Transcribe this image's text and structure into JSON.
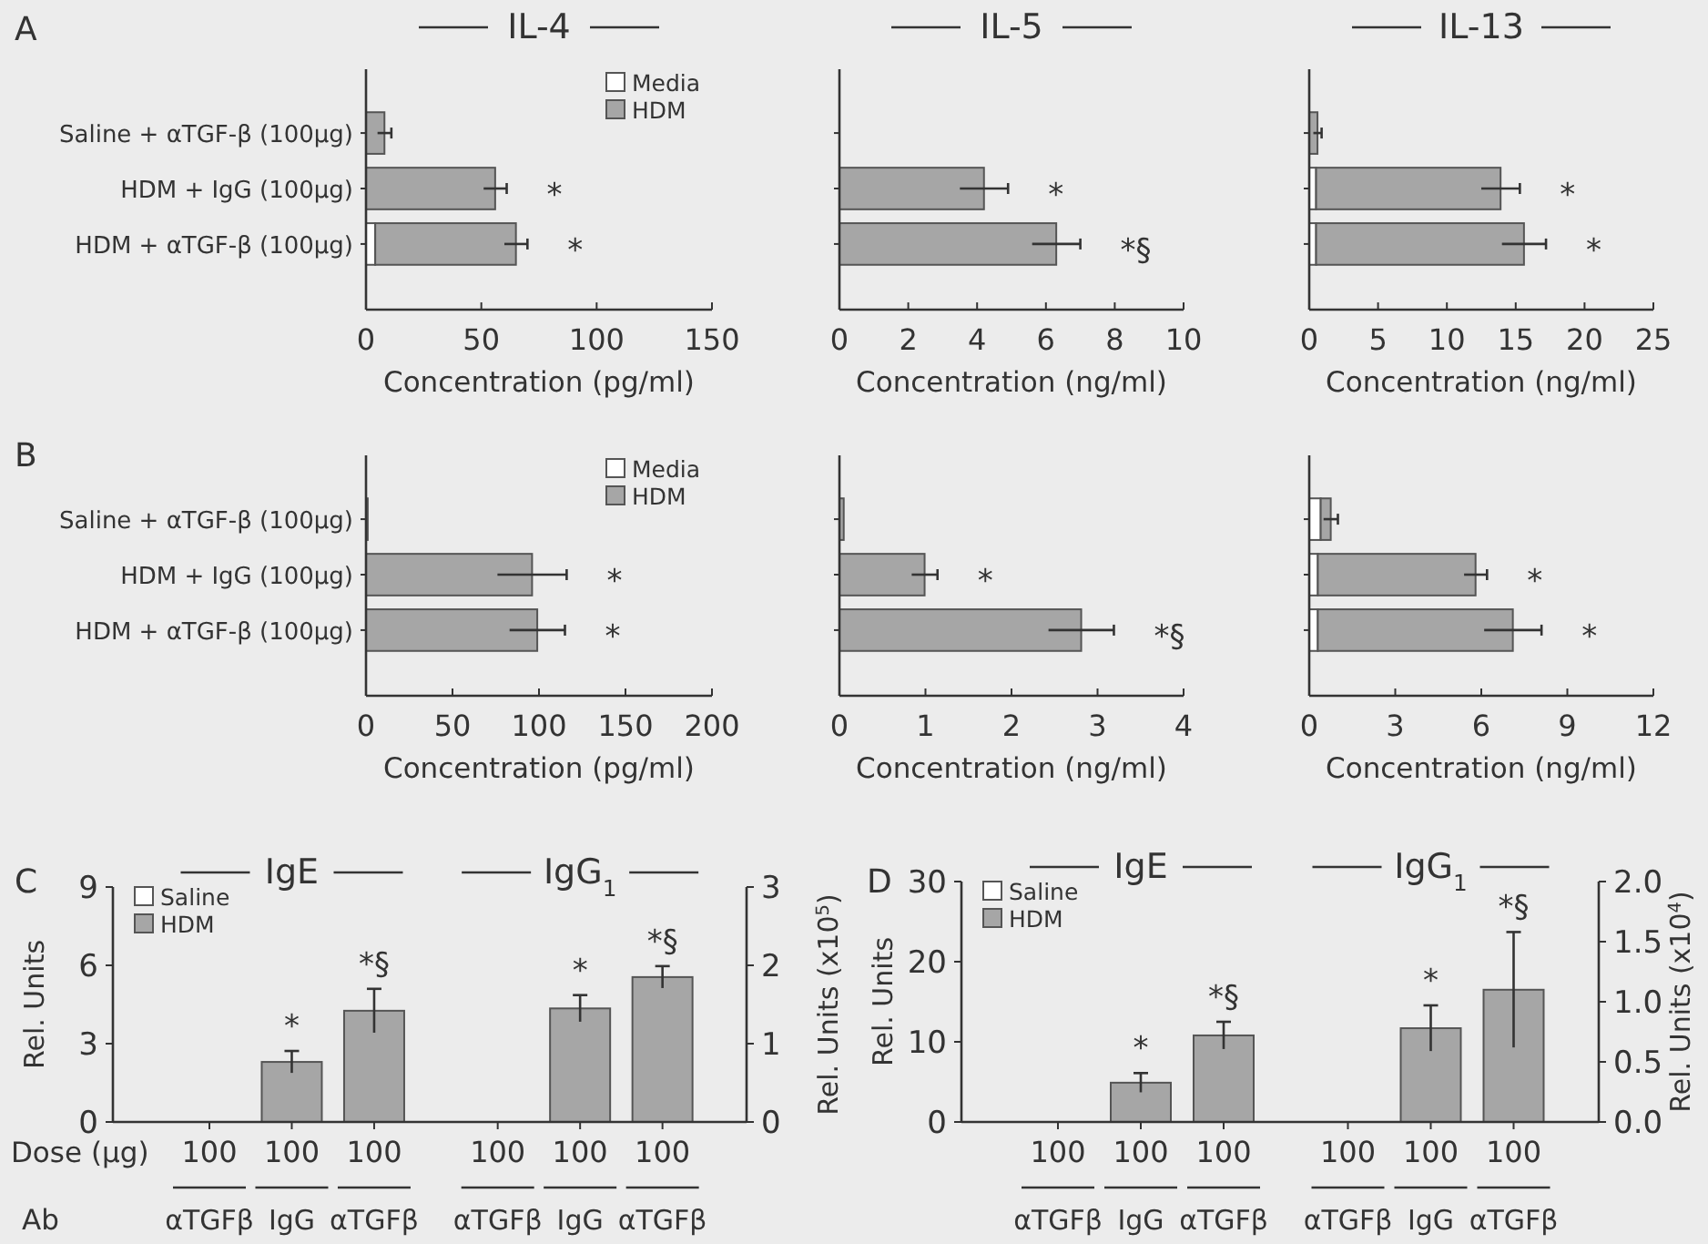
{
  "chart_data": [
    {
      "type": "bar",
      "orientation": "horizontal",
      "stacked": true,
      "title": "IL-4",
      "xlabel": "Concentration (pg/ml)",
      "categories": [
        "Saline + αTGF-β (100μg)",
        "HDM + IgG (100μg)",
        "HDM + αTGF-β (100μg)"
      ],
      "series": [
        {
          "name": "Media",
          "color": "#ffffff",
          "values": [
            null,
            null,
            4
          ]
        },
        {
          "name": "HDM",
          "color": "#a6a6a6",
          "values": [
            8,
            56,
            61
          ],
          "errors": [
            3,
            5,
            5
          ]
        }
      ],
      "xlim": [
        0,
        150
      ],
      "xticks": [
        0,
        50,
        100,
        150
      ],
      "legend": "top right",
      "annotations": [
        "A",
        "*",
        "*"
      ]
    },
    {
      "type": "bar",
      "orientation": "horizontal",
      "stacked": true,
      "title": "IL-5",
      "xlabel": "Concentration (ng/ml)",
      "categories": [
        null,
        null,
        null
      ],
      "tick_labels": "x",
      "series": [
        {
          "color": "#ffffff",
          "values": [
            0,
            0,
            0
          ]
        },
        {
          "color": "#a6a6a6",
          "values": [
            0,
            4.2,
            6.3
          ],
          "errors": [
            null,
            0.7,
            0.7
          ]
        }
      ],
      "xlim": [
        0,
        10
      ],
      "xticks": [
        0,
        2,
        4,
        6,
        8,
        10
      ],
      "annotations": [
        "*",
        "*§"
      ]
    },
    {
      "type": "bar",
      "orientation": "horizontal",
      "stacked": true,
      "title": "IL-13",
      "xlabel": "Concentration (ng/ml)",
      "categories": [
        null,
        null,
        null
      ],
      "tick_labels": "x",
      "series": [
        {
          "color": "#ffffff",
          "values": [
            null,
            0.5,
            0.5
          ]
        },
        {
          "color": "#a6a6a6",
          "values": [
            0.6,
            13.4,
            15.1
          ],
          "errors": [
            0.3,
            1.4,
            1.6
          ]
        }
      ],
      "xlim": [
        0,
        25
      ],
      "xticks": [
        0,
        5,
        10,
        15,
        20,
        25
      ],
      "annotations": [
        "*",
        "*"
      ]
    },
    {
      "type": "bar",
      "orientation": "horizontal",
      "stacked": true,
      "xlabel": "Concentration (pg/ml)",
      "categories": [
        "Saline + αTGF-β (100μg)",
        "HDM + IgG (100μg)",
        "HDM + αTGF-β (100μg)"
      ],
      "series": [
        {
          "name": "Media",
          "color": "#ffffff",
          "values": [
            0,
            null,
            0
          ]
        },
        {
          "name": "HDM",
          "color": "#a6a6a6",
          "values": [
            1,
            96,
            99
          ],
          "errors": [
            null,
            20,
            16
          ]
        }
      ],
      "xlim": [
        0,
        200
      ],
      "xticks": [
        0,
        50,
        100,
        150,
        200
      ],
      "legend": "top right",
      "annotations": [
        "B",
        "*",
        "*"
      ]
    },
    {
      "type": "bar",
      "orientation": "horizontal",
      "stacked": true,
      "xlabel": "Concentration (ng/ml)",
      "categories": [
        null,
        null,
        null
      ],
      "tick_labels": "x",
      "series": [
        {
          "color": "#ffffff",
          "values": [
            0,
            0,
            0
          ]
        },
        {
          "color": "#a6a6a6",
          "values": [
            0.05,
            0.99,
            2.81
          ],
          "errors": [
            null,
            0.15,
            0.38
          ]
        }
      ],
      "xlim": [
        0,
        4
      ],
      "xticks": [
        0,
        1,
        2,
        3,
        4
      ],
      "annotations": [
        "*",
        "*§"
      ]
    },
    {
      "type": "bar",
      "orientation": "horizontal",
      "stacked": true,
      "xlabel": "Concentration (ng/ml)",
      "categories": [
        null,
        null,
        null
      ],
      "tick_labels": "x",
      "series": [
        {
          "color": "#ffffff",
          "values": [
            0.4,
            0.3,
            0.3
          ]
        },
        {
          "color": "#a6a6a6",
          "values": [
            0.35,
            5.5,
            6.8
          ],
          "errors": [
            0.25,
            0.4,
            1.0
          ]
        }
      ],
      "xlim": [
        0,
        12
      ],
      "xticks": [
        0,
        3,
        6,
        9,
        12
      ],
      "annotations": [
        "*",
        "*"
      ]
    },
    {
      "type": "bar",
      "title": "IgE",
      "subtitle": "IgG$_{1}$",
      "ylabel": "Rel. Units",
      "y2label": "Rel. Units (x10$^{5}$)",
      "categories": [
        "100\nαTGFβ",
        "100\nIgG",
        "100\nαTGFβ",
        "100\nαTGFβ",
        "100\nIgG",
        "100\nαTGFβ"
      ],
      "series": [
        {
          "name": "Saline",
          "color": "#ffffff",
          "values": [
            0,
            null,
            null,
            null,
            null,
            null
          ]
        },
        {
          "name": "HDM",
          "color": "#a6a6a6",
          "values": [
            null,
            2.3,
            4.26,
            null,
            null,
            null
          ],
          "errors": [
            null,
            0.42,
            0.84,
            null,
            null,
            null
          ]
        },
        {
          "color": "#ffffff",
          "axis": "y2",
          "values": [
            null,
            null,
            null,
            0,
            null,
            null
          ]
        },
        {
          "color": "#a6a6a6",
          "axis": "y2",
          "values": [
            null,
            null,
            null,
            null,
            1.45,
            1.85
          ],
          "errors": [
            null,
            null,
            null,
            null,
            0.17,
            0.14
          ]
        }
      ],
      "ylim": [
        0,
        9
      ],
      "yticks": [
        0,
        3,
        6,
        9
      ],
      "y2lim": [
        0,
        3
      ],
      "y2ticks": [
        0,
        1,
        2,
        3
      ],
      "legend": "top left",
      "annotations": [
        "C",
        "Dose (μg)",
        "Ab",
        "*",
        "*§",
        "*",
        "*§"
      ]
    },
    {
      "type": "bar",
      "title": "IgE",
      "subtitle": "IgG$_{1}$",
      "ylabel": "Rel. Units",
      "y2label": "Rel. Units (x10$^{4}$)",
      "categories": [
        "100\nαTGFβ",
        "100\nIgG",
        "100\nαTGFβ",
        "100\nαTGFβ",
        "100\nIgG",
        "100\nαTGFβ"
      ],
      "series": [
        {
          "name": "Saline",
          "color": "#ffffff",
          "values": [
            0,
            null,
            null,
            null,
            null,
            null
          ]
        },
        {
          "name": "HDM",
          "color": "#a6a6a6",
          "values": [
            null,
            4.9,
            10.8,
            null,
            null,
            null
          ],
          "errors": [
            null,
            1.2,
            1.7,
            null,
            null,
            null
          ]
        },
        {
          "color": "#ffffff",
          "axis": "y2",
          "values": [
            null,
            null,
            null,
            0,
            null,
            null
          ]
        },
        {
          "color": "#a6a6a6",
          "axis": "y2",
          "values": [
            null,
            null,
            null,
            null,
            0.78,
            1.1
          ],
          "errors": [
            null,
            null,
            null,
            null,
            0.19,
            0.48
          ]
        }
      ],
      "ylim": [
        0,
        30
      ],
      "yticks": [
        0,
        10,
        20,
        30
      ],
      "y2lim": [
        0,
        2
      ],
      "y2ticks": [
        {
          "value": 0,
          "label": "0.0"
        },
        {
          "value": 0.5,
          "label": "0.5"
        },
        {
          "value": 1,
          "label": "1.0"
        },
        {
          "value": 1.5,
          "label": "1.5"
        },
        {
          "value": 2,
          "label": "2.0"
        }
      ],
      "legend": "top left",
      "annotations": [
        "D",
        "*",
        "*§",
        "*",
        "*§"
      ]
    }
  ]
}
